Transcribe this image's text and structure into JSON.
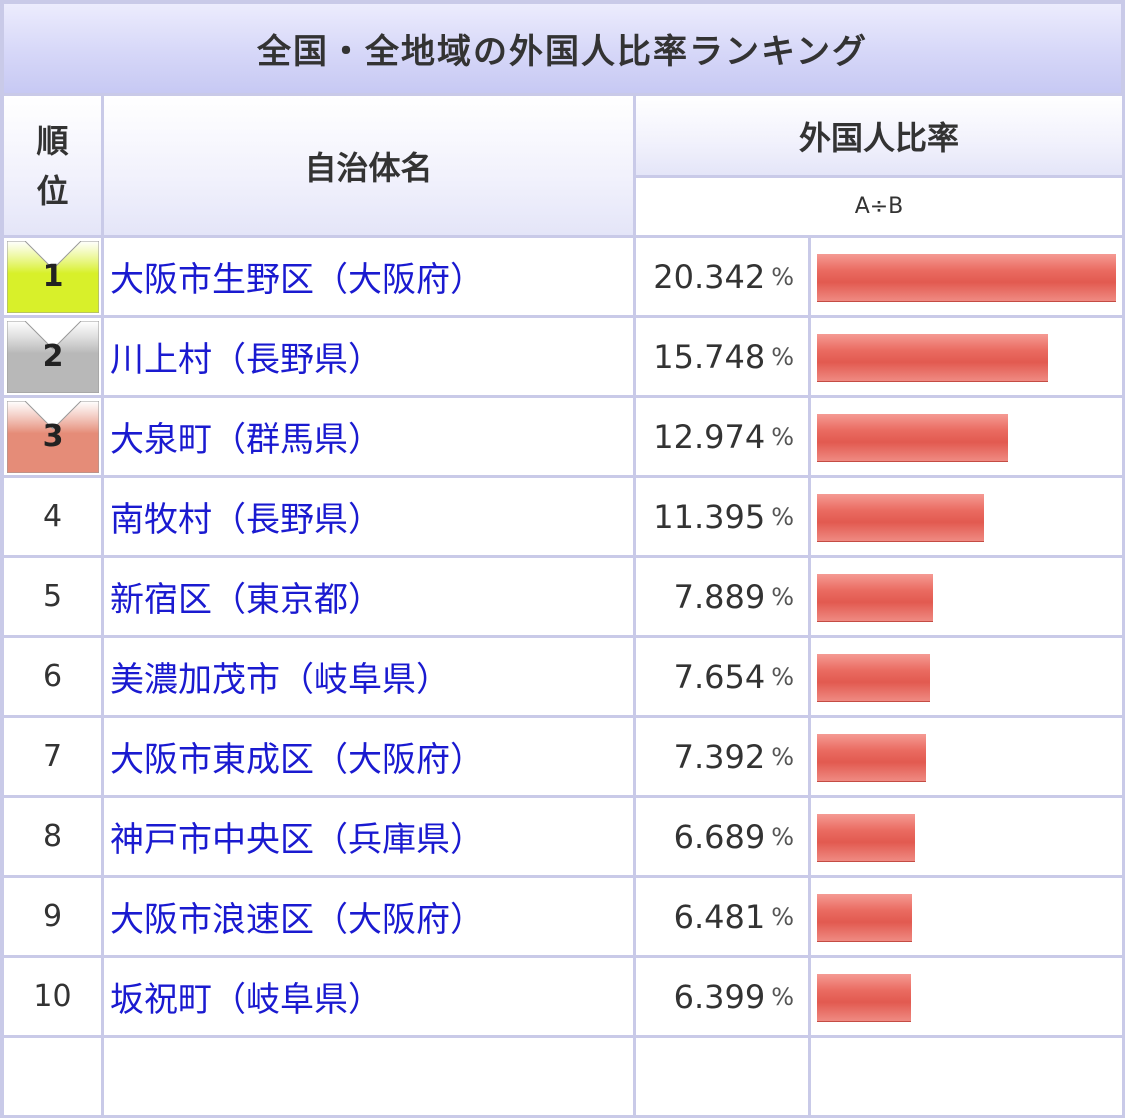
{
  "table": {
    "title": "全国・全地域の外国人比率ランキング",
    "header_rank": [
      "順",
      "位"
    ],
    "header_name": "自治体名",
    "header_ratio": "外国人比率",
    "header_formula": "A÷B"
  },
  "colors": {
    "gold": "#d8f02a",
    "silver": "#b8b8b8",
    "bronze": "#e58c78",
    "bar": "#e25a50",
    "link": "#1a1ad0",
    "border": "#c9cae8"
  },
  "rows": [
    {
      "rank": "1",
      "name": "大阪市生野区（大阪府）",
      "value": "20.342",
      "unit": "%",
      "ratio": 20.342,
      "medal": "gold"
    },
    {
      "rank": "2",
      "name": "川上村（長野県）",
      "value": "15.748",
      "unit": "%",
      "ratio": 15.748,
      "medal": "silver"
    },
    {
      "rank": "3",
      "name": "大泉町（群馬県）",
      "value": "12.974",
      "unit": "%",
      "ratio": 12.974,
      "medal": "bronze"
    },
    {
      "rank": "4",
      "name": "南牧村（長野県）",
      "value": "11.395",
      "unit": "%",
      "ratio": 11.395,
      "medal": ""
    },
    {
      "rank": "5",
      "name": "新宿区（東京都）",
      "value": "7.889",
      "unit": "%",
      "ratio": 7.889,
      "medal": ""
    },
    {
      "rank": "6",
      "name": "美濃加茂市（岐阜県）",
      "value": "7.654",
      "unit": "%",
      "ratio": 7.654,
      "medal": ""
    },
    {
      "rank": "7",
      "name": "大阪市東成区（大阪府）",
      "value": "7.392",
      "unit": "%",
      "ratio": 7.392,
      "medal": ""
    },
    {
      "rank": "8",
      "name": "神戸市中央区（兵庫県）",
      "value": "6.689",
      "unit": "%",
      "ratio": 6.689,
      "medal": ""
    },
    {
      "rank": "9",
      "name": "大阪市浪速区（大阪府）",
      "value": "6.481",
      "unit": "%",
      "ratio": 6.481,
      "medal": ""
    },
    {
      "rank": "10",
      "name": "坂祝町（岐阜県）",
      "value": "6.399",
      "unit": "%",
      "ratio": 6.399,
      "medal": ""
    }
  ]
}
